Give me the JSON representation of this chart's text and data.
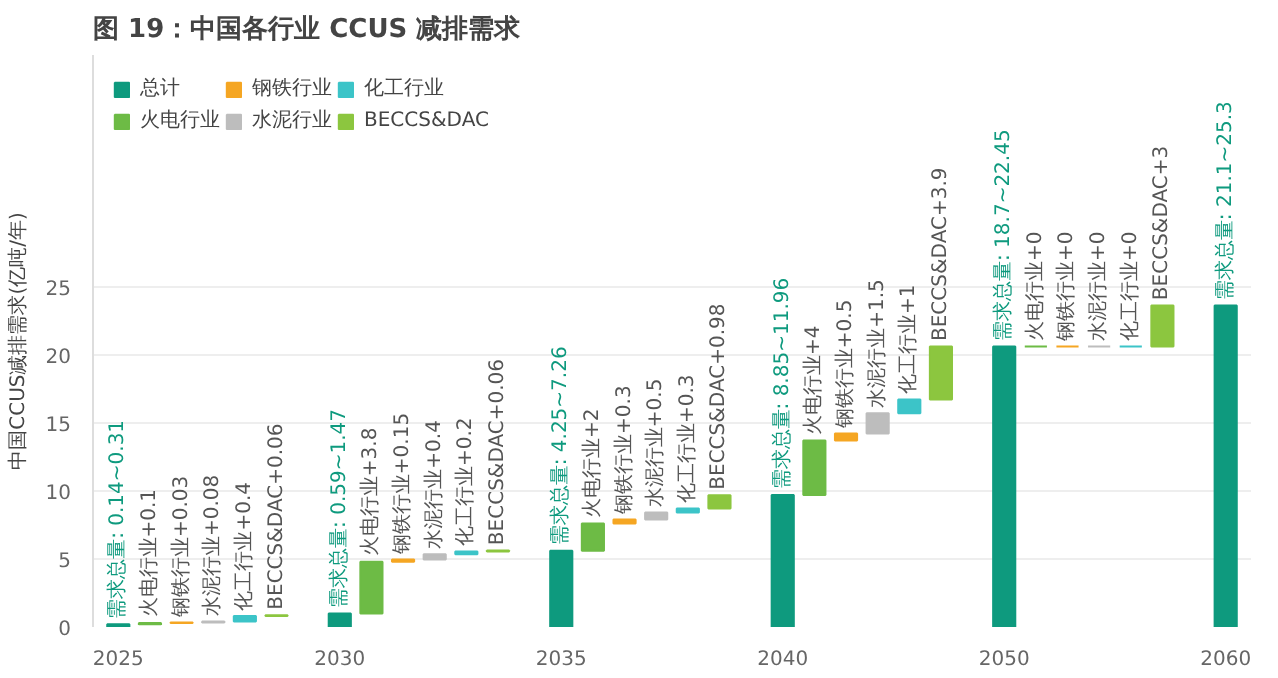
{
  "chart_data": {
    "type": "bar",
    "title": "图 19：中国各行业 CCUS 减排需求",
    "ylabel": "中国CCUS减排需求(亿吨/年)",
    "categories": [
      "2025",
      null,
      null,
      null,
      null,
      null,
      null,
      "2030",
      null,
      null,
      null,
      null,
      null,
      null,
      "2035",
      null,
      null,
      null,
      null,
      null,
      null,
      "2040",
      null,
      null,
      null,
      null,
      null,
      null,
      "2050",
      null,
      null,
      null,
      null,
      null,
      null,
      "2060"
    ],
    "series": [
      {
        "name": "总计",
        "color": "#0e9a7e",
        "values": [
          0.2,
          null,
          null,
          null,
          null,
          null,
          null,
          1.0,
          null,
          null,
          null,
          null,
          null,
          null,
          5.6,
          null,
          null,
          null,
          null,
          null,
          null,
          9.7,
          null,
          null,
          null,
          null,
          null,
          null,
          20.6,
          null,
          null,
          null,
          null,
          null,
          null,
          23.6
        ],
        "base": [
          0,
          null,
          null,
          null,
          null,
          null,
          null,
          0,
          null,
          null,
          null,
          null,
          null,
          null,
          0,
          null,
          null,
          null,
          null,
          null,
          null,
          0,
          null,
          null,
          null,
          null,
          null,
          null,
          0,
          null,
          null,
          null,
          null,
          null,
          null,
          0
        ]
      },
      {
        "name": "火电行业",
        "color": "#6dbb45",
        "values": [
          null,
          0.1,
          null,
          null,
          null,
          null,
          null,
          null,
          3.8,
          null,
          null,
          null,
          null,
          null,
          null,
          2,
          null,
          null,
          null,
          null,
          null,
          null,
          4,
          null,
          null,
          null,
          null,
          null,
          null,
          0,
          null,
          null,
          null,
          null,
          null,
          null
        ],
        "base": [
          null,
          0.2,
          null,
          null,
          null,
          null,
          null,
          null,
          1.0,
          null,
          null,
          null,
          null,
          null,
          null,
          5.6,
          null,
          null,
          null,
          null,
          null,
          null,
          9.7,
          null,
          null,
          null,
          null,
          null,
          null,
          20.6,
          null,
          null,
          null,
          null,
          null,
          null
        ]
      },
      {
        "name": "钢铁行业",
        "color": "#f5a623",
        "values": [
          null,
          null,
          0.03,
          null,
          null,
          null,
          null,
          null,
          null,
          0.15,
          null,
          null,
          null,
          null,
          null,
          null,
          0.3,
          null,
          null,
          null,
          null,
          null,
          null,
          0.5,
          null,
          null,
          null,
          null,
          null,
          null,
          0,
          null,
          null,
          null,
          null,
          null
        ],
        "base": [
          null,
          null,
          0.3,
          null,
          null,
          null,
          null,
          null,
          null,
          4.8,
          null,
          null,
          null,
          null,
          null,
          null,
          7.6,
          null,
          null,
          null,
          null,
          null,
          null,
          13.7,
          null,
          null,
          null,
          null,
          null,
          null,
          20.6,
          null,
          null,
          null,
          null,
          null
        ]
      },
      {
        "name": "水泥行业",
        "color": "#bdbdbd",
        "values": [
          null,
          null,
          null,
          0.08,
          null,
          null,
          null,
          null,
          null,
          null,
          0.4,
          null,
          null,
          null,
          null,
          null,
          null,
          0.5,
          null,
          null,
          null,
          null,
          null,
          null,
          1.5,
          null,
          null,
          null,
          null,
          null,
          null,
          0,
          null,
          null,
          null,
          null
        ],
        "base": [
          null,
          null,
          null,
          0.33,
          null,
          null,
          null,
          null,
          null,
          null,
          4.95,
          null,
          null,
          null,
          null,
          null,
          null,
          7.9,
          null,
          null,
          null,
          null,
          null,
          null,
          14.2,
          null,
          null,
          null,
          null,
          null,
          null,
          20.6,
          null,
          null,
          null,
          null
        ]
      },
      {
        "name": "化工行业",
        "color": "#3cc4c8",
        "values": [
          null,
          null,
          null,
          null,
          0.4,
          null,
          null,
          null,
          null,
          null,
          null,
          0.2,
          null,
          null,
          null,
          null,
          null,
          null,
          0.3,
          null,
          null,
          null,
          null,
          null,
          null,
          1,
          null,
          null,
          null,
          null,
          null,
          null,
          0,
          null,
          null,
          null
        ],
        "base": [
          null,
          null,
          null,
          null,
          0.41,
          null,
          null,
          null,
          null,
          null,
          null,
          5.35,
          null,
          null,
          null,
          null,
          null,
          null,
          8.4,
          null,
          null,
          null,
          null,
          null,
          null,
          15.7,
          null,
          null,
          null,
          null,
          null,
          null,
          20.6,
          null,
          null,
          null
        ]
      },
      {
        "name": "BECCS&DAC",
        "color": "#8cc63f",
        "values": [
          null,
          null,
          null,
          null,
          null,
          0.06,
          null,
          null,
          null,
          null,
          null,
          null,
          0.06,
          null,
          null,
          null,
          null,
          null,
          null,
          0.98,
          null,
          null,
          null,
          null,
          null,
          null,
          3.9,
          null,
          null,
          null,
          null,
          null,
          null,
          3,
          null,
          null
        ],
        "base": [
          null,
          null,
          null,
          null,
          null,
          0.81,
          null,
          null,
          null,
          null,
          null,
          null,
          5.55,
          null,
          null,
          null,
          null,
          null,
          null,
          8.7,
          null,
          null,
          null,
          null,
          null,
          null,
          16.7,
          null,
          null,
          null,
          null,
          null,
          null,
          20.6,
          null,
          null
        ]
      }
    ],
    "value_labels": [
      "需求总量: 0.14~0.31",
      "火电行业+0.1",
      "钢铁行业+0.03",
      "水泥行业+0.08",
      "化工行业+0.4",
      "BECCS&DAC+0.06",
      null,
      "需求总量: 0.59~1.47",
      "火电行业+3.8",
      "钢铁行业+0.15",
      "水泥行业+0.4",
      "化工行业+0.2",
      "BECCS&DAC+0.06",
      null,
      "需求总量: 4.25~7.26",
      "火电行业+2",
      "钢铁行业+0.3",
      "水泥行业+0.5",
      "化工行业+0.3",
      "BECCS&DAC+0.98",
      null,
      "需求总量: 8.85~11.96",
      "火电行业+4",
      "钢铁行业+0.5",
      "水泥行业+1.5",
      "化工行业+1",
      "BECCS&DAC+3.9",
      null,
      "需求总量: 18.7~22.45",
      "火电行业+0",
      "钢铁行业+0",
      "水泥行业+0",
      "化工行业+0",
      "BECCS&DAC+3",
      null,
      "需求总量: 21.1~25.3"
    ],
    "ylim": [
      0,
      42
    ],
    "yticks": [
      0,
      5,
      10,
      15,
      20,
      25
    ],
    "grid": "y",
    "legend": "top left"
  }
}
